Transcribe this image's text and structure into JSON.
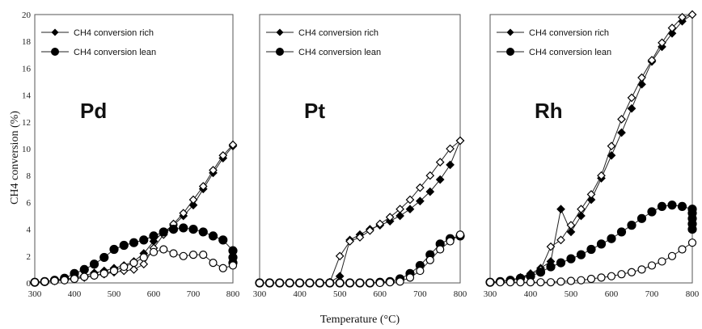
{
  "chart_data": {
    "type": "line",
    "xlabel": "Temperature (°C)",
    "ylabel": "CH4 conversion (%)",
    "xlim": [
      300,
      800
    ],
    "ylim": [
      0,
      20
    ],
    "xticks": [
      "300",
      "400",
      "500",
      "600",
      "700",
      "800"
    ],
    "yticks": [
      "0",
      "2",
      "4",
      "6",
      "8",
      "10",
      "12",
      "14",
      "16",
      "18",
      "20"
    ],
    "grid": false,
    "legend_position": "top-left",
    "panels": [
      {
        "label": "Pd",
        "series": [
          {
            "name": "CH4 conversion rich",
            "marker": "diamond",
            "filled": true,
            "x": [
              300,
              325,
              350,
              375,
              400,
              425,
              450,
              475,
              500,
              525,
              550,
              575,
              600,
              625,
              650,
              675,
              700,
              725,
              750,
              775,
              800
            ],
            "y": [
              0.05,
              0.1,
              0.15,
              0.25,
              0.4,
              0.55,
              0.75,
              0.9,
              1.1,
              1.3,
              1.6,
              2.2,
              3.1,
              3.8,
              4.3,
              5.0,
              5.8,
              7.0,
              8.2,
              9.3,
              10.2
            ]
          },
          {
            "name": "CH4 conversion rich (return)",
            "marker": "diamond",
            "filled": false,
            "x": [
              300,
              325,
              350,
              375,
              400,
              425,
              450,
              475,
              500,
              525,
              550,
              575,
              600,
              625,
              650,
              675,
              700,
              725,
              750,
              775,
              800
            ],
            "y": [
              0.05,
              0.1,
              0.15,
              0.2,
              0.3,
              0.4,
              0.55,
              0.65,
              0.8,
              0.9,
              1.0,
              1.4,
              2.6,
              3.6,
              4.4,
              5.2,
              6.2,
              7.2,
              8.4,
              9.5,
              10.3
            ]
          },
          {
            "name": "CH4 conversion lean",
            "marker": "circle",
            "filled": true,
            "x": [
              300,
              325,
              350,
              375,
              400,
              425,
              450,
              475,
              500,
              525,
              550,
              575,
              600,
              625,
              650,
              675,
              700,
              725,
              750,
              775,
              800,
              800,
              800
            ],
            "y": [
              0.05,
              0.1,
              0.2,
              0.35,
              0.7,
              1.0,
              1.4,
              1.9,
              2.5,
              2.8,
              3.0,
              3.2,
              3.5,
              3.8,
              4.0,
              4.1,
              4.0,
              3.8,
              3.5,
              3.2,
              2.4,
              1.9,
              1.5
            ]
          },
          {
            "name": "CH4 conversion lean (return)",
            "marker": "circle",
            "filled": false,
            "x": [
              300,
              325,
              350,
              375,
              400,
              425,
              450,
              475,
              500,
              525,
              550,
              575,
              600,
              625,
              650,
              675,
              700,
              725,
              750,
              775,
              800
            ],
            "y": [
              0.05,
              0.1,
              0.15,
              0.2,
              0.3,
              0.45,
              0.55,
              0.7,
              0.9,
              1.2,
              1.5,
              1.9,
              2.3,
              2.5,
              2.2,
              2.0,
              2.1,
              2.1,
              1.5,
              1.1,
              1.3
            ]
          }
        ]
      },
      {
        "label": "Pt",
        "series": [
          {
            "name": "CH4 conversion rich",
            "marker": "diamond",
            "filled": true,
            "x": [
              300,
              325,
              350,
              375,
              400,
              425,
              450,
              475,
              500,
              525,
              550,
              575,
              600,
              625,
              650,
              675,
              700,
              725,
              750,
              775,
              800
            ],
            "y": [
              0,
              0,
              0,
              0,
              0,
              0,
              0,
              0.05,
              0.5,
              3.2,
              3.6,
              4.0,
              4.3,
              4.6,
              5.0,
              5.5,
              6.1,
              6.8,
              7.7,
              8.8,
              10.6
            ]
          },
          {
            "name": "CH4 conversion rich (return)",
            "marker": "diamond",
            "filled": false,
            "x": [
              300,
              325,
              350,
              375,
              400,
              425,
              450,
              475,
              500,
              525,
              550,
              575,
              600,
              625,
              650,
              675,
              700,
              725,
              750,
              775,
              800
            ],
            "y": [
              0,
              0,
              0,
              0,
              0,
              0,
              0,
              0.05,
              2.0,
              3.1,
              3.4,
              3.9,
              4.4,
              4.9,
              5.5,
              6.2,
              7.1,
              8.0,
              9.0,
              10.0,
              10.6
            ]
          },
          {
            "name": "CH4 conversion lean",
            "marker": "circle",
            "filled": true,
            "x": [
              300,
              325,
              350,
              375,
              400,
              425,
              450,
              475,
              500,
              525,
              550,
              575,
              600,
              625,
              650,
              675,
              700,
              725,
              750,
              775,
              800
            ],
            "y": [
              0,
              0,
              0,
              0,
              0,
              0,
              0,
              0,
              0,
              0,
              0,
              0,
              0.05,
              0.1,
              0.3,
              0.7,
              1.3,
              2.1,
              2.9,
              3.3,
              3.5
            ]
          },
          {
            "name": "CH4 conversion lean (return)",
            "marker": "circle",
            "filled": false,
            "x": [
              300,
              325,
              350,
              375,
              400,
              425,
              450,
              475,
              500,
              525,
              550,
              575,
              600,
              625,
              650,
              675,
              700,
              725,
              750,
              775,
              800
            ],
            "y": [
              0,
              0,
              0,
              0,
              0,
              0,
              0,
              0,
              0,
              0,
              0,
              0,
              0,
              0.05,
              0.1,
              0.4,
              0.9,
              1.7,
              2.5,
              3.1,
              3.6
            ]
          }
        ]
      },
      {
        "label": "Rh",
        "series": [
          {
            "name": "CH4 conversion rich",
            "marker": "diamond",
            "filled": true,
            "x": [
              300,
              325,
              350,
              375,
              400,
              425,
              450,
              475,
              500,
              525,
              550,
              575,
              600,
              625,
              650,
              675,
              700,
              725,
              750,
              775,
              800
            ],
            "y": [
              0.05,
              0.1,
              0.2,
              0.4,
              0.7,
              1.1,
              1.6,
              5.5,
              3.8,
              5.0,
              6.2,
              7.8,
              9.5,
              11.2,
              13.0,
              14.8,
              16.5,
              17.6,
              18.6,
              19.5,
              20.0
            ]
          },
          {
            "name": "CH4 conversion rich (return)",
            "marker": "diamond",
            "filled": false,
            "x": [
              300,
              325,
              350,
              375,
              400,
              425,
              450,
              475,
              500,
              525,
              550,
              575,
              600,
              625,
              650,
              675,
              700,
              725,
              750,
              775,
              800
            ],
            "y": [
              0.05,
              0.1,
              0.2,
              0.4,
              0.6,
              1.0,
              2.7,
              3.2,
              4.3,
              5.5,
              6.6,
              8.0,
              10.2,
              12.2,
              13.8,
              15.3,
              16.6,
              17.9,
              19.0,
              19.8,
              20.0
            ]
          },
          {
            "name": "CH4 conversion lean",
            "marker": "circle",
            "filled": true,
            "x": [
              300,
              325,
              350,
              375,
              400,
              425,
              450,
              475,
              500,
              525,
              550,
              575,
              600,
              625,
              650,
              675,
              700,
              725,
              750,
              775,
              800,
              800,
              800,
              800,
              800
            ],
            "y": [
              0.05,
              0.1,
              0.2,
              0.35,
              0.5,
              0.8,
              1.2,
              1.5,
              1.8,
              2.1,
              2.5,
              2.9,
              3.3,
              3.8,
              4.3,
              4.8,
              5.3,
              5.7,
              5.8,
              5.7,
              5.5,
              5.2,
              4.8,
              4.4,
              4.0
            ]
          },
          {
            "name": "CH4 conversion lean (return)",
            "marker": "circle",
            "filled": false,
            "x": [
              300,
              325,
              350,
              375,
              400,
              425,
              450,
              475,
              500,
              525,
              550,
              575,
              600,
              625,
              650,
              675,
              700,
              725,
              750,
              775,
              800
            ],
            "y": [
              0.05,
              0.05,
              0.05,
              0.05,
              0.05,
              0.05,
              0.05,
              0.1,
              0.15,
              0.2,
              0.3,
              0.4,
              0.5,
              0.65,
              0.8,
              1.0,
              1.3,
              1.6,
              2.0,
              2.5,
              3.0
            ]
          }
        ]
      }
    ],
    "legend": [
      "CH4 conversion rich",
      "CH4 conversion lean"
    ]
  }
}
